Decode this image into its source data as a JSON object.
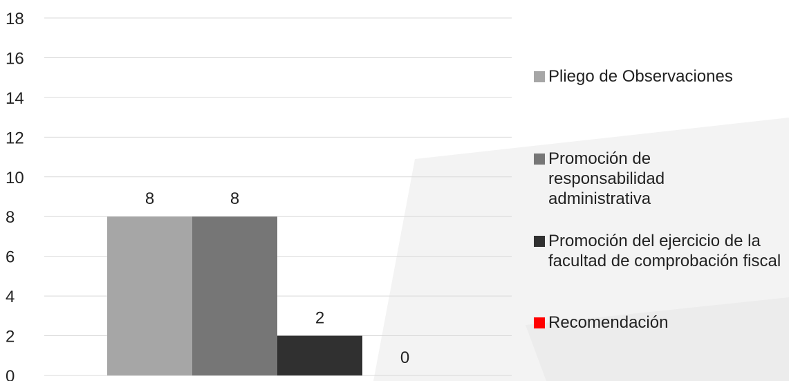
{
  "chart_data": {
    "type": "bar",
    "categories": [
      ""
    ],
    "series": [
      {
        "name": "Pliego de Observaciones",
        "values": [
          8
        ],
        "color": "#a6a6a6"
      },
      {
        "name": "Promoción de responsabilidad administrativa",
        "values": [
          8
        ],
        "color": "#767676"
      },
      {
        "name": "Promoción del ejercicio de la facultad de comprobación fiscal",
        "values": [
          2
        ],
        "color": "#303030"
      },
      {
        "name": "Recomendación",
        "values": [
          0
        ],
        "color": "#ff0000"
      }
    ],
    "data_labels": [
      "8",
      "8",
      "2",
      "0"
    ],
    "title": "",
    "xlabel": "",
    "ylabel": "",
    "ylim": [
      0,
      18
    ],
    "yticks": [
      "0",
      "2",
      "4",
      "6",
      "8",
      "10",
      "12",
      "14",
      "16",
      "18"
    ],
    "grid": true,
    "legend_position": "right"
  }
}
